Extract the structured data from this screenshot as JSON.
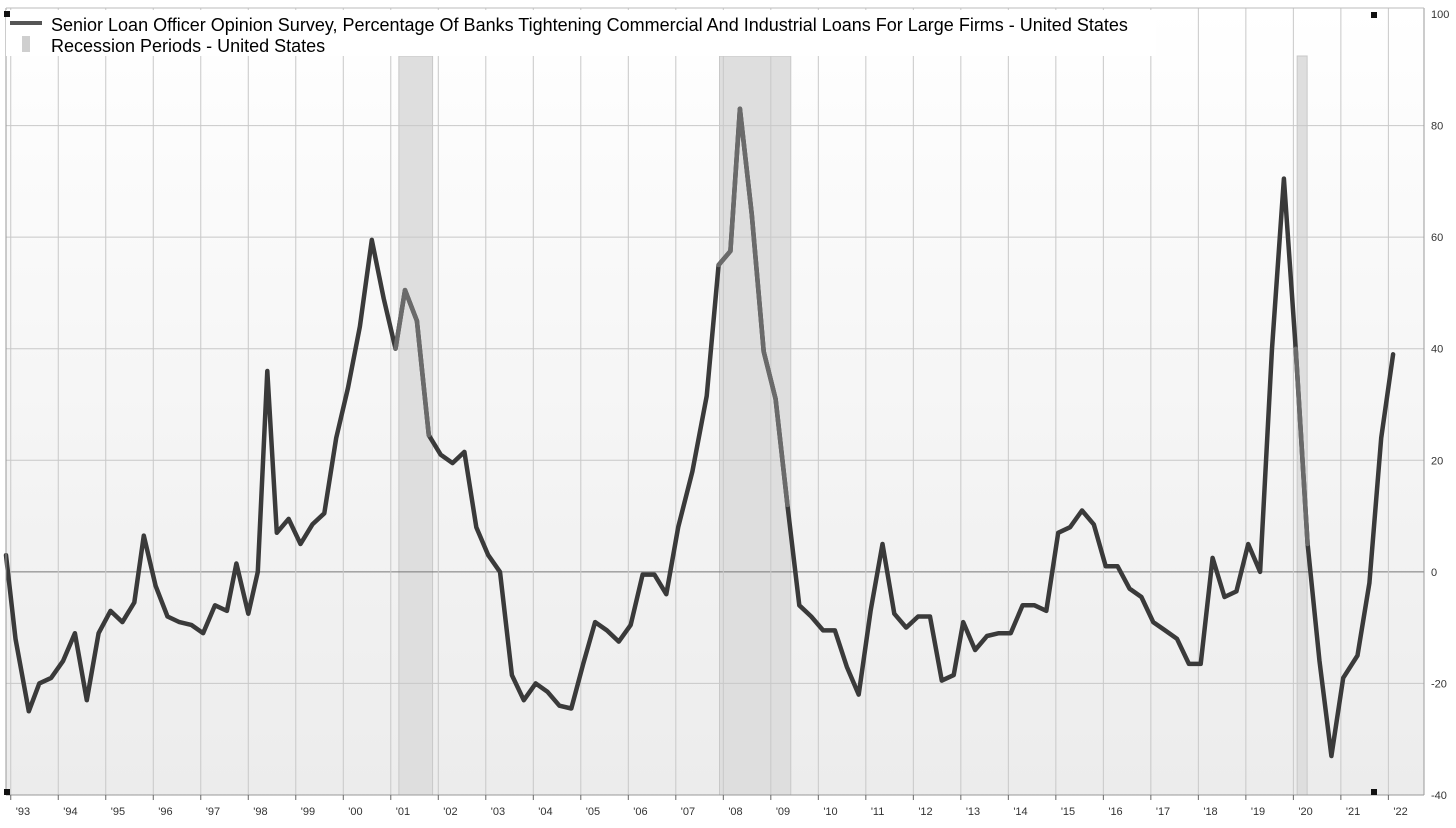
{
  "chart_data": {
    "type": "line",
    "title": "",
    "xlabel": "",
    "ylabel": "",
    "ylim": [
      -40,
      100
    ],
    "y_ticks": [
      -40,
      -20,
      0,
      20,
      40,
      60,
      80,
      100
    ],
    "x_tick_labels": [
      "'93",
      "'94",
      "'95",
      "'96",
      "'97",
      "'98",
      "'99",
      "'00",
      "'01",
      "'02",
      "'03",
      "'04",
      "'05",
      "'06",
      "'07",
      "'08",
      "'09",
      "'10",
      "'11",
      "'12",
      "'13",
      "'14",
      "'15",
      "'16",
      "'17",
      "'18",
      "'19",
      "'20",
      "'21",
      "'22"
    ],
    "x_tick_years": [
      1993,
      1994,
      1995,
      1996,
      1997,
      1998,
      1999,
      2000,
      2001,
      2002,
      2003,
      2004,
      2005,
      2006,
      2007,
      2008,
      2009,
      2010,
      2011,
      2012,
      2013,
      2014,
      2015,
      2016,
      2017,
      2018,
      2019,
      2020,
      2021,
      2022
    ],
    "xlim": [
      1992.9,
      2022.75
    ],
    "grid": true,
    "legend_position": "top-left",
    "legend": [
      {
        "label": "Senior Loan Officer Opinion Survey, Percentage Of Banks Tightening Commercial And Industrial Loans For Large Firms - United States",
        "kind": "line"
      },
      {
        "label": "Recession Periods - United States",
        "kind": "band"
      }
    ],
    "colors": {
      "series": "#3a3a3a",
      "series_in_recession": "#6a6a6a",
      "recession": "#dedede",
      "grid": "#c8c8c8",
      "zero_line": "#777777",
      "background_top": "#ffffff",
      "background_bottom": "#ececec"
    },
    "recessions": [
      {
        "start": 2001.17,
        "end": 2001.88
      },
      {
        "start": 2007.92,
        "end": 2009.42
      },
      {
        "start": 2020.08,
        "end": 2020.29
      }
    ],
    "series": [
      {
        "name": "Senior Loan Officer Opinion Survey, Percentage Of Banks Tightening Commercial And Industrial Loans For Large Firms - United States",
        "points": [
          [
            1992.9,
            3
          ],
          [
            1993.1,
            -12
          ],
          [
            1993.38,
            -25
          ],
          [
            1993.6,
            -20
          ],
          [
            1993.85,
            -19
          ],
          [
            1994.1,
            -16
          ],
          [
            1994.35,
            -11
          ],
          [
            1994.6,
            -23
          ],
          [
            1994.85,
            -11
          ],
          [
            1995.1,
            -7
          ],
          [
            1995.35,
            -9
          ],
          [
            1995.6,
            -5.5
          ],
          [
            1995.8,
            6.5
          ],
          [
            1996.05,
            -2.5
          ],
          [
            1996.3,
            -8
          ],
          [
            1996.55,
            -9
          ],
          [
            1996.8,
            -9.5
          ],
          [
            1997.05,
            -11
          ],
          [
            1997.3,
            -6
          ],
          [
            1997.55,
            -7
          ],
          [
            1997.75,
            1.5
          ],
          [
            1998.0,
            -7.5
          ],
          [
            1998.2,
            0
          ],
          [
            1998.4,
            36
          ],
          [
            1998.6,
            7
          ],
          [
            1998.85,
            9.5
          ],
          [
            1999.1,
            5
          ],
          [
            1999.35,
            8.5
          ],
          [
            1999.6,
            10.5
          ],
          [
            1999.85,
            24
          ],
          [
            2000.1,
            33
          ],
          [
            2000.35,
            44
          ],
          [
            2000.6,
            59.5
          ],
          [
            2000.85,
            49
          ],
          [
            2001.1,
            40
          ],
          [
            2001.3,
            50.5
          ],
          [
            2001.55,
            45
          ],
          [
            2001.8,
            24.5
          ],
          [
            2002.05,
            21
          ],
          [
            2002.3,
            19.5
          ],
          [
            2002.55,
            21.5
          ],
          [
            2002.8,
            8
          ],
          [
            2003.05,
            3
          ],
          [
            2003.3,
            0
          ],
          [
            2003.55,
            -18.5
          ],
          [
            2003.8,
            -23
          ],
          [
            2004.05,
            -20
          ],
          [
            2004.3,
            -21.5
          ],
          [
            2004.55,
            -24
          ],
          [
            2004.8,
            -24.5
          ],
          [
            2005.05,
            -16.5
          ],
          [
            2005.3,
            -9
          ],
          [
            2005.55,
            -10.5
          ],
          [
            2005.8,
            -12.5
          ],
          [
            2006.05,
            -9.5
          ],
          [
            2006.3,
            -0.5
          ],
          [
            2006.55,
            -0.5
          ],
          [
            2006.8,
            -4
          ],
          [
            2007.05,
            8
          ],
          [
            2007.35,
            18
          ],
          [
            2007.65,
            31.5
          ],
          [
            2007.9,
            55
          ],
          [
            2008.15,
            57.5
          ],
          [
            2008.35,
            83
          ],
          [
            2008.6,
            64
          ],
          [
            2008.85,
            39.5
          ],
          [
            2009.1,
            31
          ],
          [
            2009.35,
            12
          ],
          [
            2009.6,
            -6
          ],
          [
            2009.85,
            -8
          ],
          [
            2010.1,
            -10.5
          ],
          [
            2010.35,
            -10.5
          ],
          [
            2010.6,
            -17
          ],
          [
            2010.85,
            -22
          ],
          [
            2011.1,
            -7
          ],
          [
            2011.35,
            5
          ],
          [
            2011.6,
            -7.5
          ],
          [
            2011.85,
            -10
          ],
          [
            2012.1,
            -8
          ],
          [
            2012.35,
            -8
          ],
          [
            2012.6,
            -19.5
          ],
          [
            2012.85,
            -18.5
          ],
          [
            2013.05,
            -9
          ],
          [
            2013.3,
            -14
          ],
          [
            2013.55,
            -11.5
          ],
          [
            2013.8,
            -11
          ],
          [
            2014.05,
            -11
          ],
          [
            2014.3,
            -6
          ],
          [
            2014.55,
            -6
          ],
          [
            2014.8,
            -7
          ],
          [
            2015.05,
            7
          ],
          [
            2015.3,
            8
          ],
          [
            2015.55,
            11
          ],
          [
            2015.8,
            8.5
          ],
          [
            2016.05,
            1
          ],
          [
            2016.3,
            1
          ],
          [
            2016.55,
            -3
          ],
          [
            2016.8,
            -4.5
          ],
          [
            2017.05,
            -9
          ],
          [
            2017.3,
            -10.5
          ],
          [
            2017.55,
            -12
          ],
          [
            2017.8,
            -16.5
          ],
          [
            2018.05,
            -16.5
          ],
          [
            2018.3,
            2.5
          ],
          [
            2018.55,
            -4.5
          ],
          [
            2018.8,
            -3.5
          ],
          [
            2019.05,
            5
          ],
          [
            2019.3,
            0
          ],
          [
            2019.55,
            40
          ],
          [
            2019.8,
            70.5
          ],
          [
            2020.05,
            40
          ],
          [
            2020.3,
            5
          ],
          [
            2020.55,
            -16
          ],
          [
            2020.8,
            -33
          ],
          [
            2021.05,
            -19
          ],
          [
            2021.35,
            -15
          ],
          [
            2021.6,
            -2
          ],
          [
            2021.85,
            24
          ],
          [
            2022.1,
            39
          ]
        ]
      }
    ]
  }
}
